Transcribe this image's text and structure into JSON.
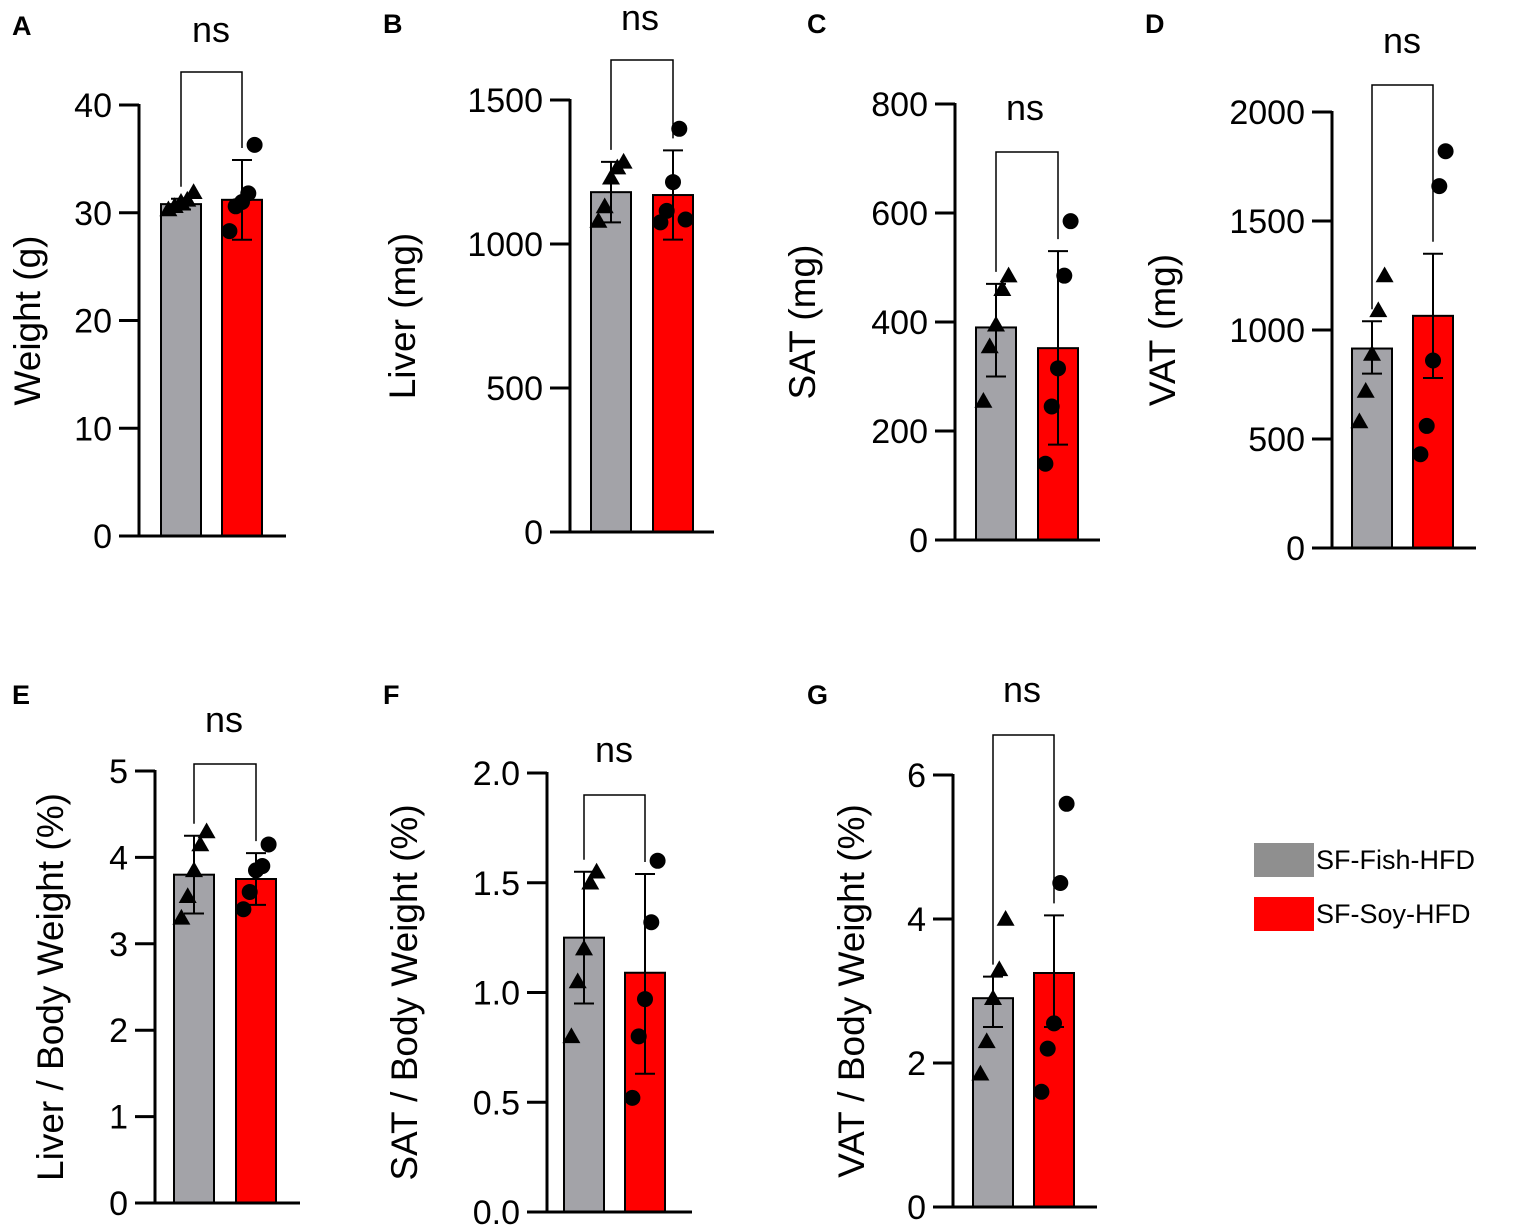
{
  "legend": {
    "items": [
      {
        "label": "SF-Fish-HFD",
        "color": "#8f8f8f"
      },
      {
        "label": "SF-Soy-HFD",
        "color": "#ff0000"
      }
    ]
  },
  "colors": {
    "fish": "#a3a3a8",
    "soy": "#ff0000",
    "axis": "#000000"
  },
  "chart_data": [
    {
      "panel": "A",
      "type": "bar",
      "ylabel": "Weight (g)",
      "ylim": [
        0,
        40
      ],
      "yticks": [
        "0",
        "10",
        "20",
        "30",
        "40"
      ],
      "significance": "ns",
      "series": [
        {
          "name": "SF-Fish-HFD",
          "mean": 30.8,
          "error": [
            30.3,
            31.3
          ],
          "marker": "triangle",
          "points": [
            30.3,
            30.6,
            31.0,
            31.2,
            31.9
          ]
        },
        {
          "name": "SF-Soy-HFD",
          "mean": 31.2,
          "error": [
            27.5,
            34.9
          ],
          "marker": "circle",
          "points": [
            28.3,
            30.6,
            31.0,
            31.8,
            36.3
          ]
        }
      ]
    },
    {
      "panel": "B",
      "type": "bar",
      "ylabel": "Liver (mg)",
      "ylim": [
        0,
        1500
      ],
      "yticks": [
        "0",
        "500",
        "1000",
        "1500"
      ],
      "significance": "ns",
      "series": [
        {
          "name": "SF-Fish-HFD",
          "mean": 1180,
          "error": [
            1075,
            1285
          ],
          "marker": "triangle",
          "points": [
            1080,
            1130,
            1230,
            1265,
            1285
          ]
        },
        {
          "name": "SF-Soy-HFD",
          "mean": 1170,
          "error": [
            1015,
            1325
          ],
          "marker": "circle",
          "points": [
            1075,
            1115,
            1215,
            1400,
            1085
          ]
        }
      ]
    },
    {
      "panel": "C",
      "type": "bar",
      "ylabel": "SAT (mg)",
      "ylim": [
        0,
        800
      ],
      "yticks": [
        "0",
        "200",
        "400",
        "600",
        "800"
      ],
      "significance": "ns",
      "series": [
        {
          "name": "SF-Fish-HFD",
          "mean": 390,
          "error": [
            300,
            470
          ],
          "marker": "triangle",
          "points": [
            255,
            355,
            395,
            460,
            485
          ]
        },
        {
          "name": "SF-Soy-HFD",
          "mean": 352,
          "error": [
            175,
            530
          ],
          "marker": "circle",
          "points": [
            140,
            245,
            315,
            485,
            585
          ]
        }
      ]
    },
    {
      "panel": "D",
      "type": "bar",
      "ylabel": "VAT (mg)",
      "ylim": [
        0,
        2000
      ],
      "yticks": [
        "0",
        "500",
        "1000",
        "1500",
        "2000"
      ],
      "significance": "ns",
      "series": [
        {
          "name": "SF-Fish-HFD",
          "mean": 915,
          "error": [
            800,
            1040
          ],
          "marker": "triangle",
          "points": [
            580,
            720,
            890,
            1090,
            1250
          ]
        },
        {
          "name": "SF-Soy-HFD",
          "mean": 1065,
          "error": [
            780,
            1350
          ],
          "marker": "circle",
          "points": [
            430,
            560,
            860,
            1660,
            1820
          ]
        }
      ]
    },
    {
      "panel": "E",
      "type": "bar",
      "ylabel": "Liver / Body Weight (%)",
      "ylim": [
        0,
        5
      ],
      "yticks": [
        "0",
        "1",
        "2",
        "3",
        "4",
        "5"
      ],
      "significance": "ns",
      "series": [
        {
          "name": "SF-Fish-HFD",
          "mean": 3.8,
          "error": [
            3.35,
            4.25
          ],
          "marker": "triangle",
          "points": [
            3.3,
            3.55,
            3.85,
            4.15,
            4.3
          ]
        },
        {
          "name": "SF-Soy-HFD",
          "mean": 3.75,
          "error": [
            3.45,
            4.05
          ],
          "marker": "circle",
          "points": [
            3.4,
            3.6,
            3.85,
            3.9,
            4.15
          ]
        }
      ]
    },
    {
      "panel": "F",
      "type": "bar",
      "ylabel": "SAT / Body Weight (%)",
      "ylim": [
        0,
        2.0
      ],
      "yticks": [
        "0.0",
        "0.5",
        "1.0",
        "1.5",
        "2.0"
      ],
      "significance": "ns",
      "series": [
        {
          "name": "SF-Fish-HFD",
          "mean": 1.25,
          "error": [
            0.95,
            1.55
          ],
          "marker": "triangle",
          "points": [
            0.8,
            1.05,
            1.2,
            1.5,
            1.55
          ]
        },
        {
          "name": "SF-Soy-HFD",
          "mean": 1.09,
          "error": [
            0.63,
            1.54
          ],
          "marker": "circle",
          "points": [
            0.52,
            0.8,
            0.97,
            1.32,
            1.6
          ]
        }
      ]
    },
    {
      "panel": "G",
      "type": "bar",
      "ylabel": "VAT / Body Weight (%)",
      "ylim": [
        0,
        6
      ],
      "yticks": [
        "0",
        "2",
        "4",
        "6"
      ],
      "significance": "ns",
      "series": [
        {
          "name": "SF-Fish-HFD",
          "mean": 2.9,
          "error": [
            2.5,
            3.2
          ],
          "marker": "triangle",
          "points": [
            1.85,
            2.3,
            2.9,
            3.3,
            4.0
          ]
        },
        {
          "name": "SF-Soy-HFD",
          "mean": 3.25,
          "error": [
            2.5,
            4.05
          ],
          "marker": "circle",
          "points": [
            1.6,
            2.2,
            2.55,
            4.5,
            5.6
          ]
        }
      ]
    }
  ]
}
